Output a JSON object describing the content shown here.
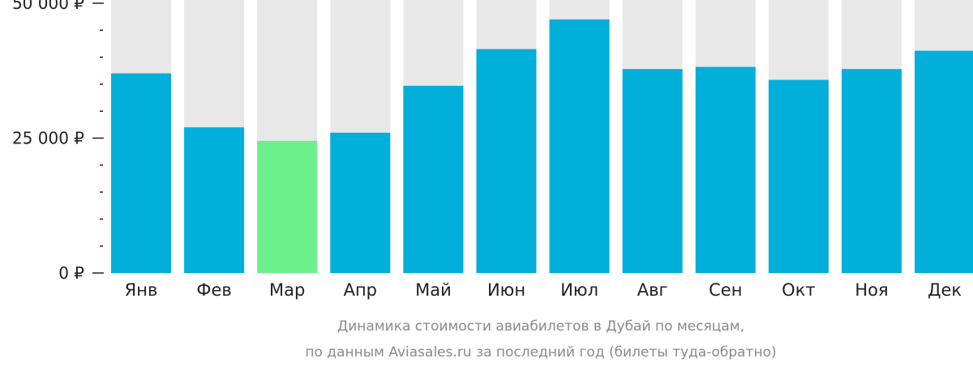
{
  "chart_data": {
    "type": "bar",
    "categories": [
      "Янв",
      "Фев",
      "Мар",
      "Апр",
      "Май",
      "Июн",
      "Июл",
      "Авг",
      "Сен",
      "Окт",
      "Ноя",
      "Дек"
    ],
    "values": [
      37000,
      27000,
      24500,
      26000,
      34700,
      41500,
      47000,
      37800,
      38200,
      35800,
      37800,
      41200
    ],
    "ylim": [
      0,
      50000
    ],
    "yticks": [
      {
        "value": 0,
        "label": "0 ₽"
      },
      {
        "value": 25000,
        "label": "25 000 ₽"
      },
      {
        "value": 50000,
        "label": "50 000 ₽"
      }
    ],
    "minor_tick_step": 5000,
    "highlight_index": 2,
    "caption_lines": [
      "Динамика стоимости авиабилетов в Дубай по месяцам,",
      "по данным Aviasales.ru за последний год (билеты туда-обратно)"
    ],
    "colors": {
      "bar": "#00afda",
      "highlight": "#6cf08a",
      "background_bar": "#e8e8e8",
      "text": "#222222",
      "caption": "#8a8a8a",
      "axis": "#222222"
    },
    "grid": false,
    "legend": "none"
  }
}
